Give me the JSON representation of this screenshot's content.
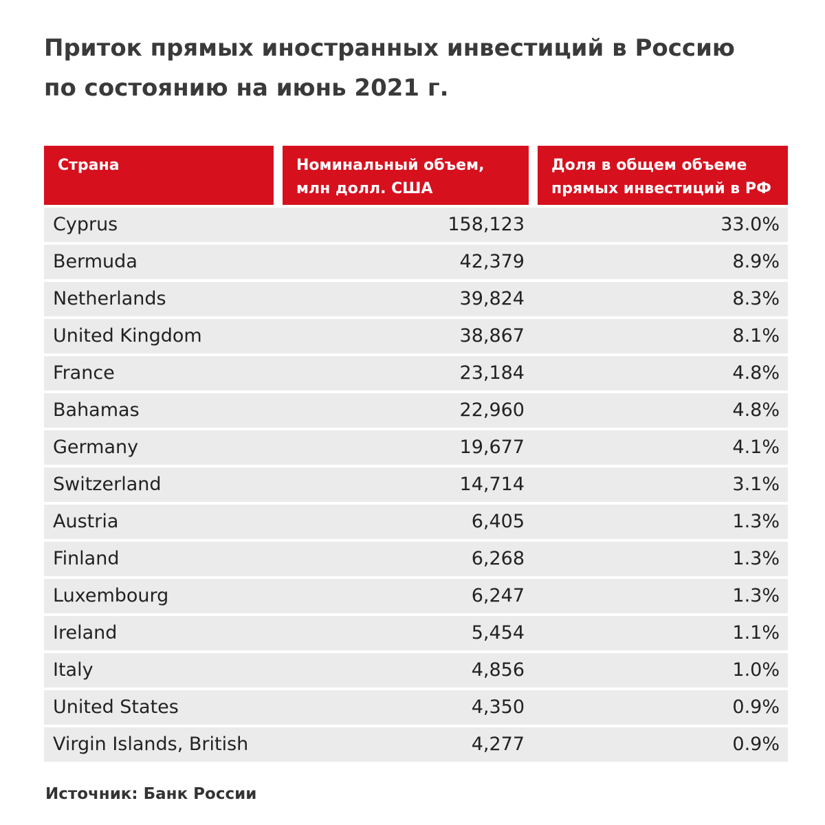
{
  "title": [
    "Приток прямых иностранных инвестиций в Россию",
    "по состоянию на июнь 2021 г."
  ],
  "table": {
    "columns": [
      [
        "Страна"
      ],
      [
        "Номинальный объем,",
        "млн долл. США"
      ],
      [
        "Доля в общем объеме",
        "прямых инвестиций в РФ"
      ]
    ],
    "rows": [
      [
        "Cyprus",
        "158,123",
        "33.0%"
      ],
      [
        "Bermuda",
        "42,379",
        "8.9%"
      ],
      [
        "Netherlands",
        "39,824",
        "8.3%"
      ],
      [
        "United Kingdom",
        "38,867",
        "8.1%"
      ],
      [
        "France",
        "23,184",
        "4.8%"
      ],
      [
        "Bahamas",
        "22,960",
        "4.8%"
      ],
      [
        "Germany",
        "19,677",
        "4.1%"
      ],
      [
        "Switzerland",
        "14,714",
        "3.1%"
      ],
      [
        "Austria",
        "6,405",
        "1.3%"
      ],
      [
        "Finland",
        "6,268",
        "1.3%"
      ],
      [
        "Luxembourg",
        "6,247",
        "1.3%"
      ],
      [
        "Ireland",
        "5,454",
        "1.1%"
      ],
      [
        "Italy",
        "4,856",
        "1.0%"
      ],
      [
        "United States",
        "4,350",
        "0.9%"
      ],
      [
        "Virgin Islands, British",
        "4,277",
        "0.9%"
      ]
    ]
  },
  "source": "Источник: Банк России"
}
